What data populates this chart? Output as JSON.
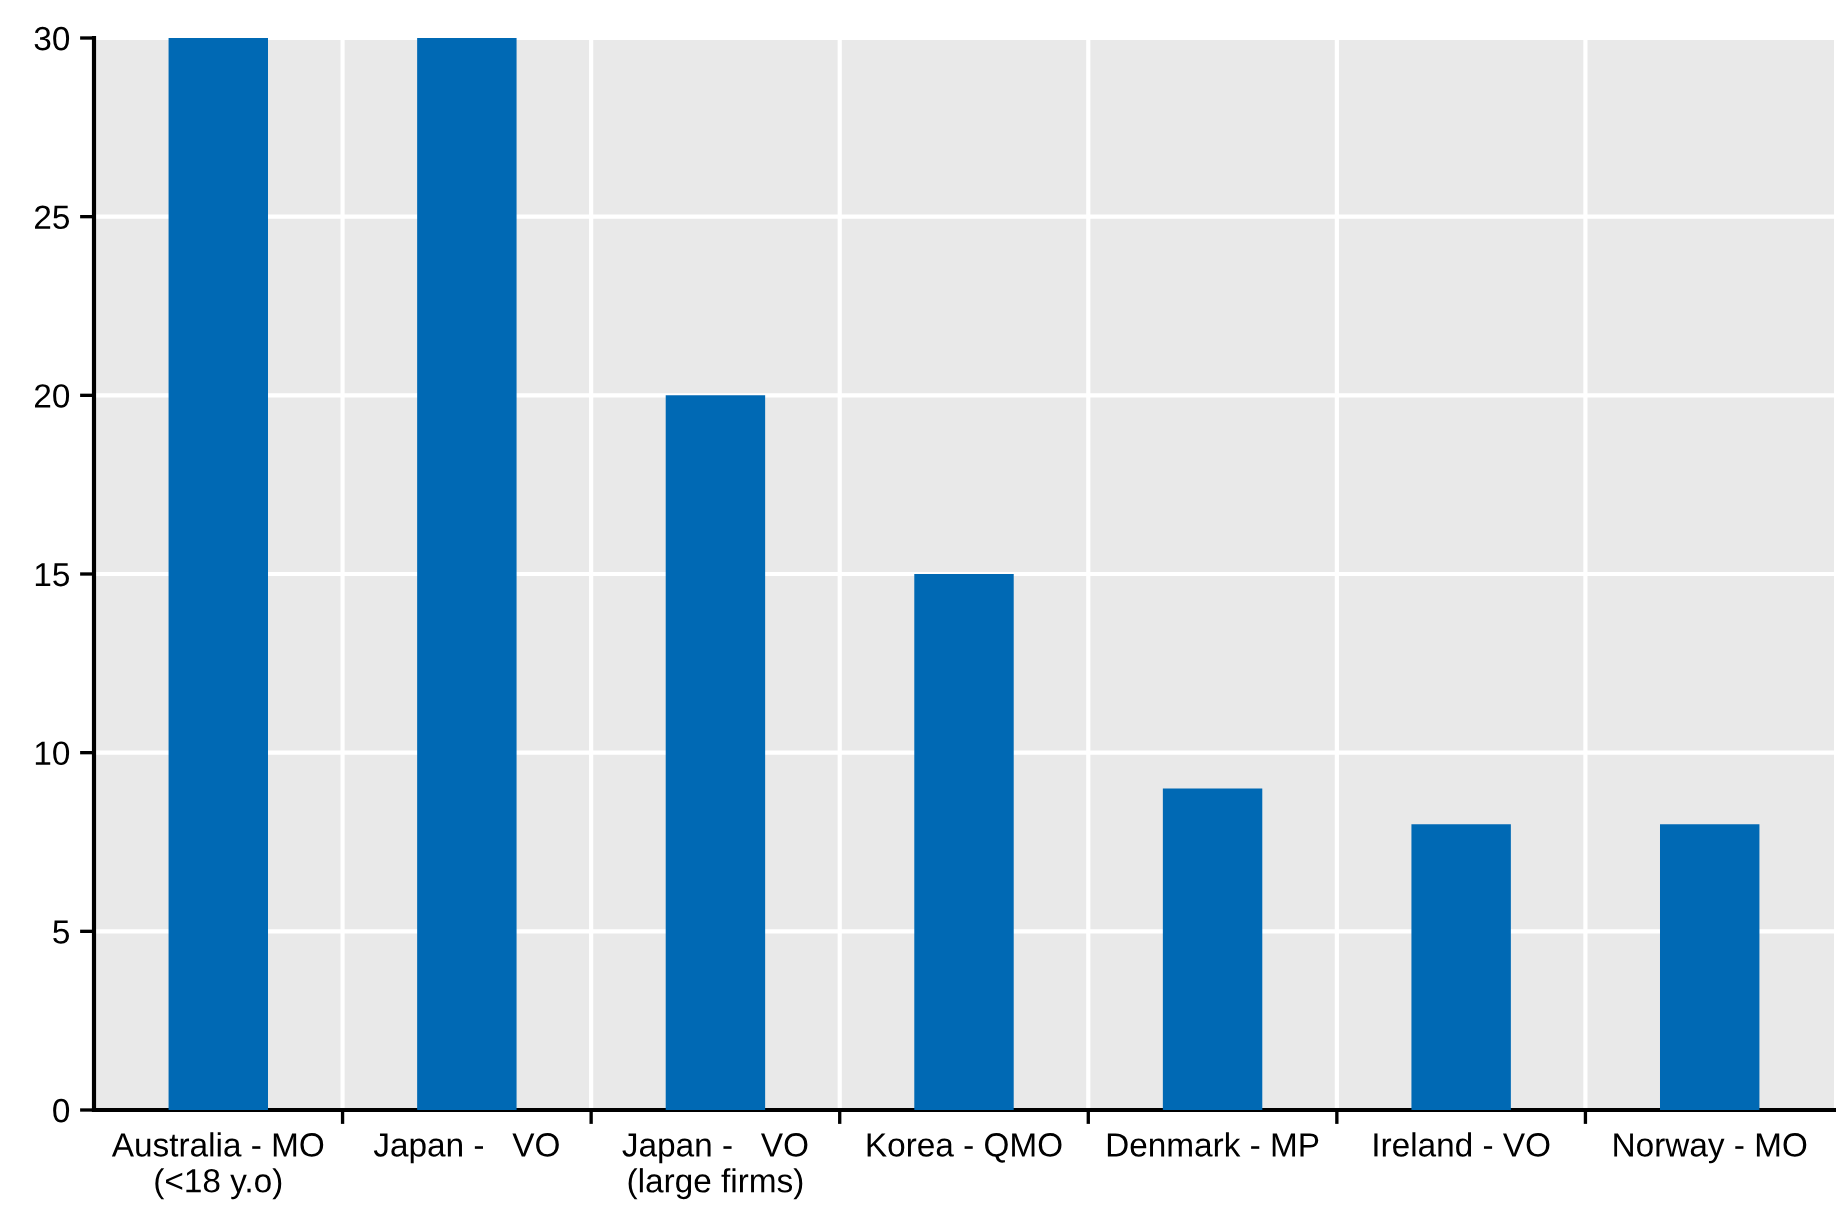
{
  "chart_data": {
    "type": "bar",
    "categories": [
      "Australia - MO\n(<18 y.o)",
      "Japan -   VO",
      "Japan -   VO\n(large firms)",
      "Korea - QMO",
      "Denmark - MP",
      "Ireland - VO",
      "Norway - MO"
    ],
    "values": [
      30,
      30,
      20,
      15,
      9,
      8,
      8
    ],
    "color": "#0069b4",
    "ylim": [
      0,
      30
    ],
    "yticks": [
      0,
      5,
      10,
      15,
      20,
      25,
      30
    ],
    "grid": true,
    "legend": false
  }
}
